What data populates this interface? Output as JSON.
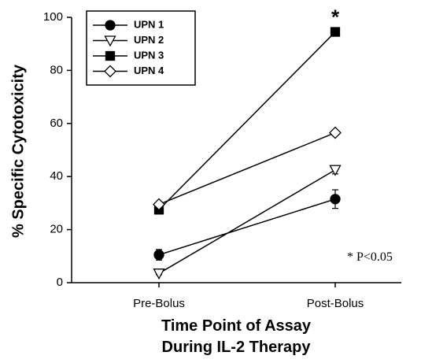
{
  "chart_data": {
    "type": "line",
    "categories": [
      "Pre-Bolus",
      "Post-Bolus"
    ],
    "ylabel": "% Specific Cytotoxicity",
    "xlabel_lines": [
      "Time Point of Assay",
      "During IL-2 Therapy"
    ],
    "ylim": [
      0,
      100
    ],
    "yticks": [
      0,
      20,
      40,
      60,
      80,
      100
    ],
    "grid": false,
    "legend_position": "top-left",
    "series": [
      {
        "name": "UPN 1",
        "marker": "circle-filled",
        "values": [
          10.5,
          31.5
        ],
        "errors": [
          2.0,
          3.5
        ]
      },
      {
        "name": "UPN 2",
        "marker": "triangle-down-open",
        "values": [
          3.5,
          42.5
        ],
        "errors": [
          0.5,
          1.5
        ]
      },
      {
        "name": "UPN 3",
        "marker": "square-filled",
        "values": [
          27.5,
          94.5
        ],
        "errors": [
          1.0,
          1.0
        ]
      },
      {
        "name": "UPN 4",
        "marker": "diamond-open",
        "values": [
          29.5,
          56.5
        ],
        "errors": [
          0.5,
          0.5
        ]
      }
    ],
    "annotations": {
      "significance_star": "*",
      "significance_star_at": {
        "category": "Post-Bolus",
        "value": 94.5
      },
      "pvalue_text": "* P<0.05"
    }
  }
}
